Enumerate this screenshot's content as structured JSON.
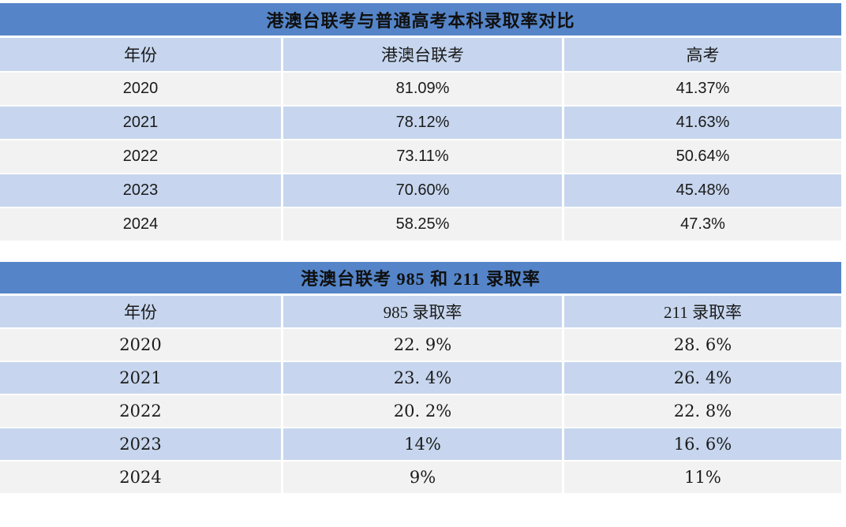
{
  "colors": {
    "title_bar": "#5585C8",
    "band_blue": "#C7D6EE",
    "band_gray": "#F2F2F2",
    "divider": "#FFFFFF",
    "text": "#1B1B1B"
  },
  "table1": {
    "title": "港澳台联考与普通高考本科录取率对比",
    "headers": [
      "年份",
      "港澳台联考",
      "高考"
    ],
    "rows": [
      {
        "year": "2020",
        "joint": "81.09%",
        "gaokao": "41.37%"
      },
      {
        "year": "2021",
        "joint": "78.12%",
        "gaokao": "41.63%"
      },
      {
        "year": "2022",
        "joint": "73.11%",
        "gaokao": "50.64%"
      },
      {
        "year": "2023",
        "joint": "70.60%",
        "gaokao": "45.48%"
      },
      {
        "year": "2024",
        "joint": "58.25%",
        "gaokao": "47.3%"
      }
    ]
  },
  "table2": {
    "title": "港澳台联考 985 和 211 录取率",
    "headers": [
      "年份",
      "985 录取率",
      "211 录取率"
    ],
    "rows": [
      {
        "year": "2020",
        "r985": "22. 9%",
        "r211": "28. 6%"
      },
      {
        "year": "2021",
        "r985": "23. 4%",
        "r211": "26. 4%"
      },
      {
        "year": "2022",
        "r985": "20. 2%",
        "r211": "22. 8%"
      },
      {
        "year": "2023",
        "r985": "14%",
        "r211": "16. 6%"
      },
      {
        "year": "2024",
        "r985": "9%",
        "r211": "11%"
      }
    ]
  },
  "chart_data": [
    {
      "type": "table",
      "title": "港澳台联考与普通高考本科录取率对比",
      "columns": [
        "年份",
        "港澳台联考",
        "高考"
      ],
      "categories": [
        "2020",
        "2021",
        "2022",
        "2023",
        "2024"
      ],
      "series": [
        {
          "name": "港澳台联考",
          "values": [
            81.09,
            78.12,
            73.11,
            70.6,
            58.25
          ]
        },
        {
          "name": "高考",
          "values": [
            41.37,
            41.63,
            50.64,
            45.48,
            47.3
          ]
        }
      ]
    },
    {
      "type": "table",
      "title": "港澳台联考 985 和 211 录取率",
      "columns": [
        "年份",
        "985 录取率",
        "211 录取率"
      ],
      "categories": [
        "2020",
        "2021",
        "2022",
        "2023",
        "2024"
      ],
      "series": [
        {
          "name": "985 录取率",
          "values": [
            22.9,
            23.4,
            20.2,
            14,
            9
          ]
        },
        {
          "name": "211 录取率",
          "values": [
            28.6,
            26.4,
            22.8,
            16.6,
            11
          ]
        }
      ]
    }
  ]
}
